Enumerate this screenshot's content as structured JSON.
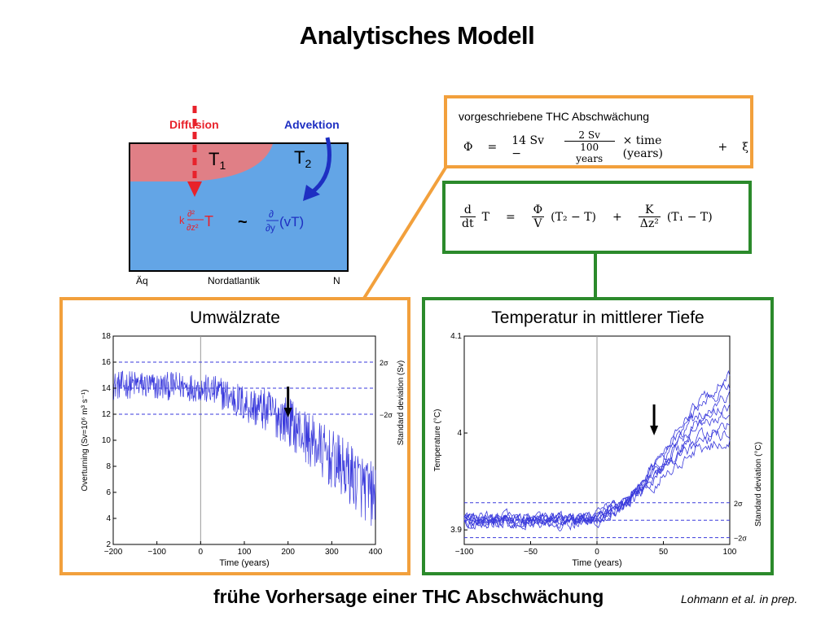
{
  "title": "Analytisches Modell",
  "footer": "frühe Vorhersage einer THC Abschwächung",
  "citation": "Lohmann et al. in prep.",
  "diagram": {
    "diffusion_label": "Diffusion",
    "advection_label": "Advektion",
    "t1": "T",
    "t1_sub": "1",
    "t2": "T",
    "t2_sub": "2",
    "diff_k": "k",
    "diff_op_num": "∂²",
    "diff_op_den": "∂z²",
    "diff_T": "T",
    "tilde": "~",
    "adv_op_num": "∂",
    "adv_op_den": "∂y",
    "adv_term": "(vT)",
    "axis_left": "Äq",
    "axis_mid": "Nordatlantik",
    "axis_right": "N"
  },
  "thc_box": {
    "heading": "vorgeschriebene THC Abschwächung",
    "phi": "Φ",
    "eq": "=",
    "term1": "14 Sv −",
    "frac_num": "2 Sv",
    "frac_den": "100 years",
    "term2": "× time (years)",
    "plus": "+",
    "xi": "ξ"
  },
  "dtdt_box": {
    "d_num": "d",
    "d_den": "dt",
    "T": "T",
    "eq": "=",
    "phi_num": "Φ",
    "phi_den": "V",
    "term1": "(T₂ − T)",
    "plus": "+",
    "k_num": "K",
    "k_den": "Δz²",
    "term2": "(T₁ − T)"
  },
  "left_chart": {
    "title": "Umwälzrate",
    "ylabel": "Overturning  (Sv=10⁶ m³ s⁻¹)",
    "xlabel": "Time (years)",
    "right_label": "Standard deviation  (Sv)",
    "sigma_labels": [
      "2σ",
      "−2σ"
    ],
    "xticks": [
      "−200",
      "−100",
      "0",
      "100",
      "200",
      "300",
      "400"
    ],
    "yticks": [
      "2",
      "4",
      "6",
      "8",
      "10",
      "12",
      "14",
      "16",
      "18"
    ]
  },
  "right_chart": {
    "title": "Temperatur in mittlerer Tiefe",
    "ylabel": "Temperature  (°C)",
    "xlabel": "Time (years)",
    "right_label": "Standard deviation  (°C)",
    "sigma_labels": [
      "2σ",
      "−2σ"
    ],
    "xticks": [
      "−100",
      "−50",
      "0",
      "50",
      "100"
    ],
    "yticks": [
      "3.9",
      "4",
      "4.1"
    ]
  },
  "chart_data": [
    {
      "type": "line",
      "title": "Umwälzrate",
      "xlabel": "Time (years)",
      "ylabel": "Overturning  (Sv=10⁶ m³ s⁻¹)",
      "xlim": [
        -200,
        400
      ],
      "ylim": [
        2,
        18
      ],
      "series": [
        {
          "x": [
            -200,
            -150,
            -100,
            -50,
            0,
            50,
            100,
            150,
            200,
            250,
            300,
            350,
            400
          ],
          "values": [
            14.2,
            14.3,
            14.1,
            14.2,
            14.0,
            13.6,
            12.8,
            12.3,
            11.5,
            10.0,
            8.5,
            7.2,
            5.5
          ]
        }
      ],
      "reference_lines": [
        16,
        14,
        12
      ],
      "vline": 0,
      "arrow_x": 200,
      "grid": false,
      "color": "#3a3adc"
    },
    {
      "type": "line",
      "title": "Temperatur in mittlerer Tiefe",
      "xlabel": "Time (years)",
      "ylabel": "Temperature  (°C)",
      "xlim": [
        -100,
        100
      ],
      "ylim": [
        3.885,
        4.1
      ],
      "series": [
        {
          "x": [
            -100,
            -75,
            -50,
            -25,
            0,
            25,
            50,
            75,
            100
          ],
          "values": [
            3.91,
            3.91,
            3.91,
            3.91,
            3.912,
            3.93,
            3.97,
            4.01,
            4.03
          ]
        }
      ],
      "reference_lines": [
        3.928,
        3.91,
        3.892
      ],
      "vline": 0,
      "arrow_x": 43,
      "grid": false,
      "color": "#3a3adc"
    }
  ],
  "colors": {
    "orange": "#f2a03c",
    "green": "#2b8a2b",
    "ocean": "#63a5e6",
    "warm": "#e07f86",
    "red": "#e8222b",
    "blue": "#1e2fc2",
    "line": "#3a3adc"
  }
}
